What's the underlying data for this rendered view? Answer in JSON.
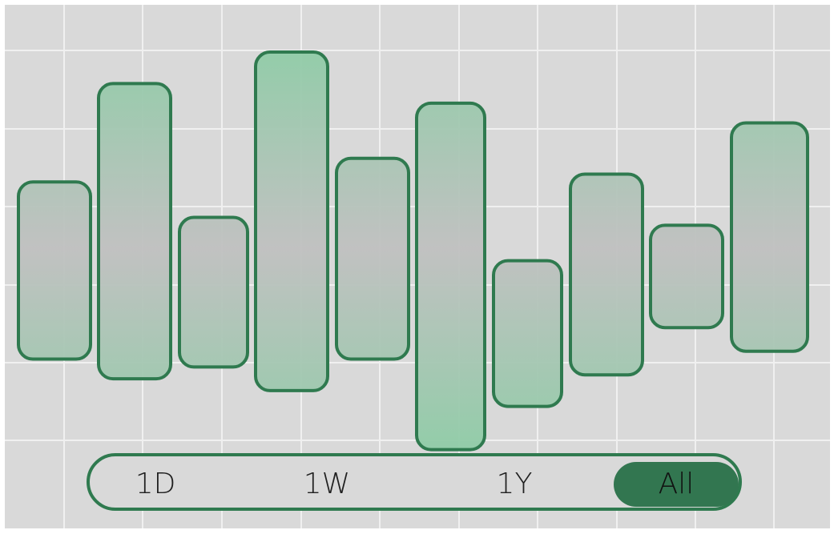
{
  "colors": {
    "background": "#d9d9d9",
    "grid": "#f0f0f0",
    "bar_stroke": "#2f7a4f",
    "bar_fill_edge": "#8ecca6",
    "bar_fill_mid": "#c0c0c0",
    "accent_selected": "#327650"
  },
  "chart_data": {
    "type": "bar",
    "subtype": "floating-range",
    "grid": true,
    "bars": [
      {
        "low": 21.5,
        "high": 44
      },
      {
        "low": 19,
        "high": 56.5
      },
      {
        "low": 20.5,
        "high": 39.5
      },
      {
        "low": 17.5,
        "high": 60.5
      },
      {
        "low": 21.5,
        "high": 47
      },
      {
        "low": 10,
        "high": 54
      },
      {
        "low": 15.5,
        "high": 34
      },
      {
        "low": 19.5,
        "high": 45
      },
      {
        "low": 25.5,
        "high": 38.5
      },
      {
        "low": 22.5,
        "high": 51.5
      }
    ],
    "ylim": [
      0,
      66.5
    ]
  },
  "range_selector": {
    "options": [
      {
        "id": "1d",
        "label": "1D",
        "selected": false
      },
      {
        "id": "1w",
        "label": "1W",
        "selected": false
      },
      {
        "id": "1y",
        "label": "1Y",
        "selected": false
      },
      {
        "id": "all",
        "label": "All",
        "selected": true
      }
    ]
  }
}
